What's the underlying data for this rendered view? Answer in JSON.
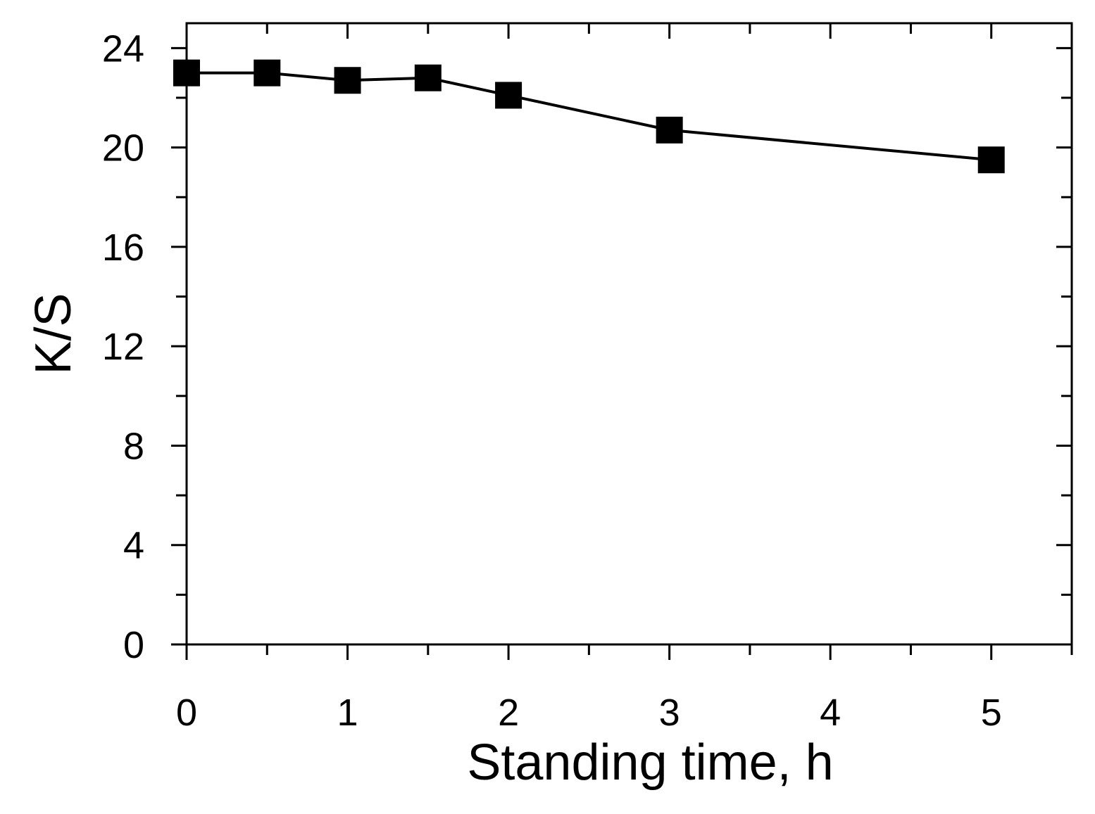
{
  "chart_data": {
    "type": "line",
    "xlabel": "Standing time, h",
    "ylabel": "K/S",
    "xlim": [
      0,
      5.5
    ],
    "ylim": [
      0,
      25
    ],
    "xticks": [
      0,
      1,
      2,
      3,
      4,
      5
    ],
    "xtick_labels": [
      "0",
      "1",
      "2",
      "3",
      "4",
      "5"
    ],
    "xminor_step": 0.5,
    "yticks": [
      0,
      4,
      8,
      12,
      16,
      20,
      24
    ],
    "ytick_labels": [
      "0",
      "4",
      "8",
      "12",
      "16",
      "20",
      "24"
    ],
    "yminor_step": 2,
    "grid": false,
    "series": [
      {
        "x": [
          0,
          0.5,
          1,
          1.5,
          2,
          3,
          5
        ],
        "y": [
          23.0,
          23.0,
          22.7,
          22.8,
          22.1,
          20.7,
          19.5
        ],
        "marker": "square",
        "color": "#000000"
      }
    ]
  }
}
